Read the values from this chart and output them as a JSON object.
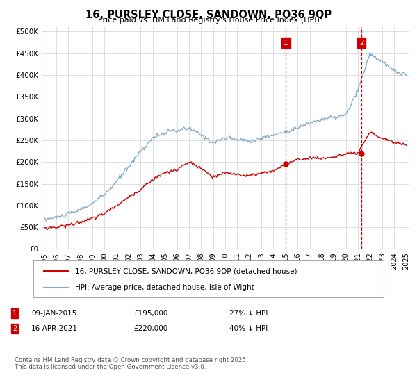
{
  "title": "16, PURSLEY CLOSE, SANDOWN, PO36 9QP",
  "subtitle": "Price paid vs. HM Land Registry's House Price Index (HPI)",
  "legend_line1": "16, PURSLEY CLOSE, SANDOWN, PO36 9QP (detached house)",
  "legend_line2": "HPI: Average price, detached house, Isle of Wight",
  "footer": "Contains HM Land Registry data © Crown copyright and database right 2025.\nThis data is licensed under the Open Government Licence v3.0.",
  "sale1_label": "1",
  "sale1_date": "09-JAN-2015",
  "sale1_price": "£195,000",
  "sale1_hpi": "27% ↓ HPI",
  "sale1_year": 2015.03,
  "sale1_value": 195000,
  "sale2_label": "2",
  "sale2_date": "16-APR-2021",
  "sale2_price": "£220,000",
  "sale2_hpi": "40% ↓ HPI",
  "sale2_year": 2021.29,
  "sale2_value": 220000,
  "hpi_color": "#7faacc",
  "price_color": "#cc0000",
  "marker_dashed_color": "#cc0000",
  "sale_dot_color": "#cc0000",
  "grid_color": "#dddddd",
  "background_color": "#ffffff",
  "ylim": [
    0,
    510000
  ],
  "yticks": [
    0,
    50000,
    100000,
    150000,
    200000,
    250000,
    300000,
    350000,
    400000,
    450000,
    500000
  ],
  "ytick_labels": [
    "£0",
    "£50K",
    "£100K",
    "£150K",
    "£200K",
    "£250K",
    "£300K",
    "£350K",
    "£400K",
    "£450K",
    "£500K"
  ],
  "xlim_left": 1994.8,
  "xlim_right": 2025.2,
  "hpi_waypoints_x": [
    1995,
    1996,
    1997,
    1998,
    1999,
    2000,
    2001,
    2002,
    2003,
    2004,
    2005,
    2006,
    2007,
    2008,
    2009,
    2010,
    2011,
    2012,
    2013,
    2014,
    2015,
    2016,
    2017,
    2018,
    2019,
    2020,
    2021,
    2022,
    2023,
    2024,
    2025
  ],
  "hpi_waypoints_y": [
    68000,
    72000,
    80000,
    90000,
    105000,
    125000,
    155000,
    190000,
    225000,
    255000,
    268000,
    272000,
    278000,
    262000,
    245000,
    255000,
    252000,
    248000,
    255000,
    262000,
    270000,
    278000,
    290000,
    298000,
    302000,
    308000,
    365000,
    450000,
    430000,
    410000,
    400000
  ],
  "price_waypoints_x": [
    1995,
    1996,
    1997,
    1998,
    1999,
    2000,
    2001,
    2002,
    2003,
    2004,
    2005,
    2006,
    2007,
    2008,
    2009,
    2010,
    2011,
    2012,
    2013,
    2014,
    2015,
    2016,
    2017,
    2018,
    2019,
    2020,
    2021,
    2022,
    2023,
    2024,
    2025
  ],
  "price_waypoints_y": [
    48000,
    50000,
    55000,
    62000,
    70000,
    82000,
    100000,
    118000,
    138000,
    160000,
    175000,
    182000,
    200000,
    185000,
    165000,
    175000,
    172000,
    168000,
    175000,
    180000,
    195000,
    205000,
    210000,
    208000,
    212000,
    218000,
    220000,
    268000,
    255000,
    245000,
    240000
  ],
  "noise_hpi_seed": 10,
  "noise_hpi_scale": 2500,
  "noise_price_seed": 20,
  "noise_price_scale": 1800,
  "n_points": 360
}
